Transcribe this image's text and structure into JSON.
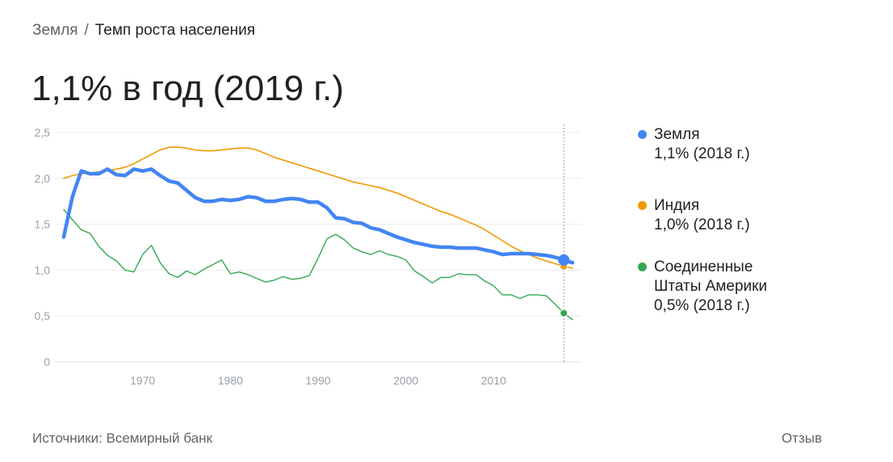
{
  "breadcrumb": {
    "parent": "Земля",
    "separator": "/",
    "current": "Темп роста населения"
  },
  "headline": "1,1% в год (2019 г.)",
  "legend": [
    {
      "name": "Земля",
      "value": "1,1% (2018 г.)",
      "color": "#4285f4"
    },
    {
      "name": "Индия",
      "value": "1,0% (2018 г.)",
      "color": "#f29900"
    },
    {
      "name": "Соединенные Штаты Америки",
      "value": "0,5% (2018 г.)",
      "color": "#34a853"
    }
  ],
  "footer": {
    "sources": "Источники: Всемирный банк",
    "feedback": "Отзыв"
  },
  "chart_data": {
    "type": "line",
    "xlim": [
      1960,
      2020
    ],
    "ylim": [
      0,
      2.5
    ],
    "y_ticks": [
      "0",
      "0,5",
      "1,0",
      "1,5",
      "2,0",
      "2,5"
    ],
    "y_tick_values": [
      0,
      0.5,
      1.0,
      1.5,
      2.0,
      2.5
    ],
    "x_ticks": [
      "1970",
      "1980",
      "1990",
      "2000",
      "2010"
    ],
    "x_tick_values": [
      1970,
      1980,
      1990,
      2000,
      2010
    ],
    "grid": true,
    "highlight_year": 2018,
    "series": [
      {
        "name": "Земля",
        "color": "#4285f4",
        "x": [
          1961,
          1962,
          1963,
          1964,
          1965,
          1966,
          1967,
          1968,
          1969,
          1970,
          1971,
          1972,
          1973,
          1974,
          1975,
          1976,
          1977,
          1978,
          1979,
          1980,
          1981,
          1982,
          1983,
          1984,
          1985,
          1986,
          1987,
          1988,
          1989,
          1990,
          1991,
          1992,
          1993,
          1994,
          1995,
          1996,
          1997,
          1998,
          1999,
          2000,
          2001,
          2002,
          2003,
          2004,
          2005,
          2006,
          2007,
          2008,
          2009,
          2010,
          2011,
          2012,
          2013,
          2014,
          2015,
          2016,
          2017,
          2018,
          2019
        ],
        "y": [
          1.36,
          1.8,
          2.08,
          2.05,
          2.05,
          2.1,
          2.04,
          2.03,
          2.1,
          2.08,
          2.1,
          2.03,
          1.97,
          1.95,
          1.87,
          1.79,
          1.75,
          1.75,
          1.77,
          1.76,
          1.77,
          1.8,
          1.79,
          1.75,
          1.75,
          1.77,
          1.78,
          1.77,
          1.74,
          1.74,
          1.68,
          1.57,
          1.56,
          1.52,
          1.51,
          1.46,
          1.44,
          1.4,
          1.36,
          1.33,
          1.3,
          1.28,
          1.26,
          1.25,
          1.25,
          1.24,
          1.24,
          1.24,
          1.22,
          1.2,
          1.17,
          1.18,
          1.18,
          1.18,
          1.17,
          1.16,
          1.14,
          1.11,
          1.08
        ]
      },
      {
        "name": "Индия",
        "color": "#f29900",
        "x": [
          1961,
          1962,
          1963,
          1964,
          1965,
          1966,
          1967,
          1968,
          1969,
          1970,
          1971,
          1972,
          1973,
          1974,
          1975,
          1976,
          1977,
          1978,
          1979,
          1980,
          1981,
          1982,
          1983,
          1984,
          1985,
          1986,
          1987,
          1988,
          1989,
          1990,
          1991,
          1992,
          1993,
          1994,
          1995,
          1996,
          1997,
          1998,
          1999,
          2000,
          2001,
          2002,
          2003,
          2004,
          2005,
          2006,
          2007,
          2008,
          2009,
          2010,
          2011,
          2012,
          2013,
          2014,
          2015,
          2016,
          2017,
          2018,
          2019
        ],
        "y": [
          2.0,
          2.03,
          2.05,
          2.06,
          2.07,
          2.08,
          2.1,
          2.12,
          2.16,
          2.21,
          2.26,
          2.31,
          2.34,
          2.34,
          2.33,
          2.31,
          2.3,
          2.3,
          2.31,
          2.32,
          2.33,
          2.33,
          2.31,
          2.27,
          2.23,
          2.2,
          2.17,
          2.14,
          2.11,
          2.08,
          2.05,
          2.02,
          1.99,
          1.96,
          1.94,
          1.92,
          1.9,
          1.87,
          1.84,
          1.8,
          1.76,
          1.72,
          1.68,
          1.64,
          1.61,
          1.57,
          1.53,
          1.49,
          1.44,
          1.38,
          1.32,
          1.26,
          1.21,
          1.17,
          1.13,
          1.1,
          1.07,
          1.04,
          1.02
        ]
      },
      {
        "name": "Соединенные Штаты Америки",
        "color": "#34a853",
        "x": [
          1961,
          1962,
          1963,
          1964,
          1965,
          1966,
          1967,
          1968,
          1969,
          1970,
          1971,
          1972,
          1973,
          1974,
          1975,
          1976,
          1977,
          1978,
          1979,
          1980,
          1981,
          1982,
          1983,
          1984,
          1985,
          1986,
          1987,
          1988,
          1989,
          1990,
          1991,
          1992,
          1993,
          1994,
          1995,
          1996,
          1997,
          1998,
          1999,
          2000,
          2001,
          2002,
          2003,
          2004,
          2005,
          2006,
          2007,
          2008,
          2009,
          2010,
          2011,
          2012,
          2013,
          2014,
          2015,
          2016,
          2017,
          2018,
          2019
        ],
        "y": [
          1.66,
          1.55,
          1.44,
          1.4,
          1.26,
          1.16,
          1.1,
          1.0,
          0.98,
          1.17,
          1.27,
          1.08,
          0.96,
          0.92,
          0.99,
          0.95,
          1.01,
          1.06,
          1.11,
          0.96,
          0.98,
          0.95,
          0.91,
          0.87,
          0.89,
          0.93,
          0.9,
          0.91,
          0.94,
          1.13,
          1.34,
          1.39,
          1.33,
          1.24,
          1.2,
          1.17,
          1.21,
          1.17,
          1.15,
          1.11,
          0.99,
          0.93,
          0.86,
          0.92,
          0.92,
          0.96,
          0.95,
          0.95,
          0.88,
          0.83,
          0.73,
          0.73,
          0.69,
          0.73,
          0.73,
          0.72,
          0.63,
          0.53,
          0.46
        ]
      }
    ]
  }
}
